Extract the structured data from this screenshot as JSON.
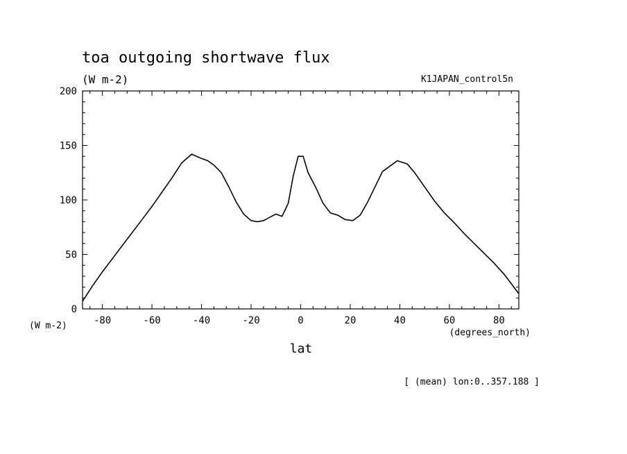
{
  "chart_data": {
    "type": "line",
    "title": "toa outgoing shortwave flux",
    "units": "(W m-2)",
    "dataset": "K1JAPAN_control5n",
    "ylabel_units": "(W m-2)",
    "xlabel": "lat",
    "xlabel_units": "(degrees_north)",
    "note": "[ (mean) lon:0..357.188 ]",
    "xlim": [
      -88,
      88
    ],
    "ylim": [
      0,
      200
    ],
    "xticks": [
      -80,
      -60,
      -40,
      -20,
      0,
      20,
      40,
      60,
      80
    ],
    "yticks": [
      0,
      50,
      100,
      150,
      200
    ],
    "grid": false,
    "x": [
      -88,
      -84,
      -80,
      -76,
      -72,
      -68,
      -64,
      -60,
      -56,
      -52,
      -48,
      -44,
      -40,
      -37.5,
      -35,
      -32,
      -29,
      -26,
      -23,
      -20,
      -17.5,
      -15,
      -12.5,
      -10,
      -7.5,
      -5,
      -3,
      -1,
      1,
      3,
      6,
      9,
      12,
      15,
      18,
      21,
      24,
      27,
      30,
      33,
      36,
      39,
      43,
      46,
      50,
      54,
      58,
      62,
      66,
      70,
      74,
      78,
      82,
      86,
      88
    ],
    "values": [
      7,
      21,
      34,
      46,
      58,
      70,
      82,
      94,
      107,
      120,
      134,
      142,
      138,
      136,
      132,
      125,
      112,
      98,
      87,
      81,
      80,
      81,
      84,
      87,
      85,
      97,
      122,
      140,
      140,
      125,
      112,
      97,
      88,
      86,
      82,
      81,
      86,
      98,
      112,
      126,
      131,
      136,
      133,
      125,
      112,
      99,
      88,
      79,
      69,
      60,
      51,
      42,
      32,
      20,
      14
    ]
  }
}
